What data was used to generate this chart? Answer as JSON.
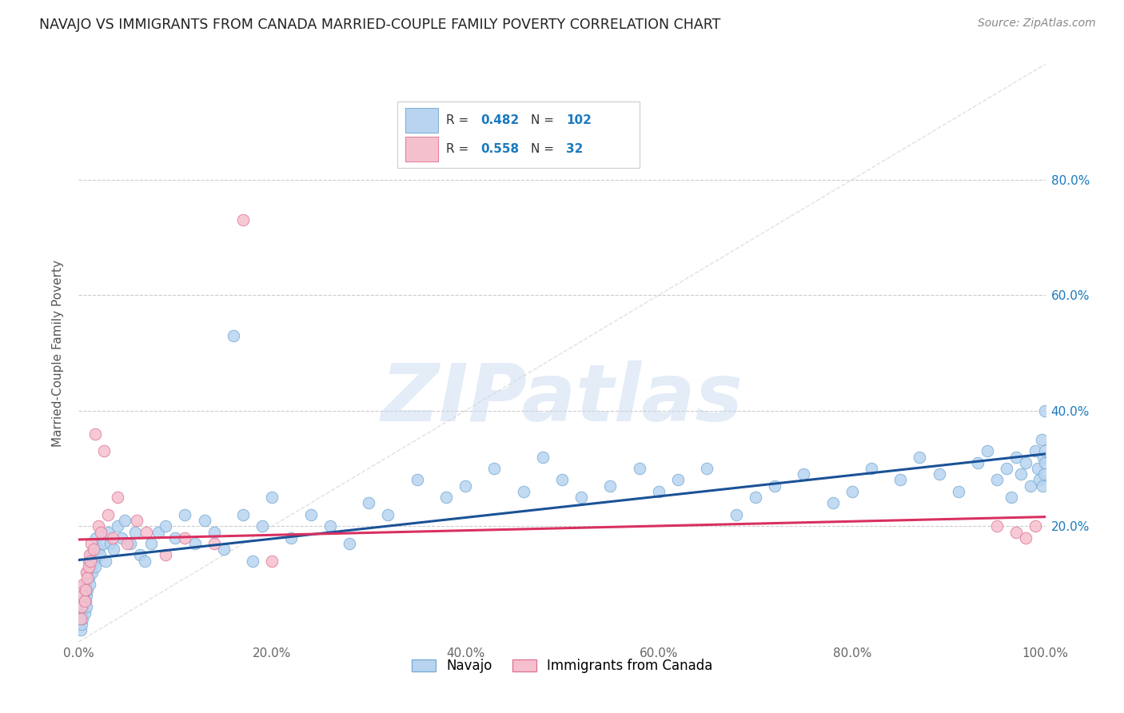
{
  "title": "NAVAJO VS IMMIGRANTS FROM CANADA MARRIED-COUPLE FAMILY POVERTY CORRELATION CHART",
  "source": "Source: ZipAtlas.com",
  "ylabel": "Married-Couple Family Poverty",
  "x_min": 0.0,
  "x_max": 1.0,
  "y_min": 0.0,
  "y_max": 1.0,
  "x_tick_vals": [
    0.0,
    0.2,
    0.4,
    0.6,
    0.8,
    1.0
  ],
  "x_tick_labels": [
    "0.0%",
    "20.0%",
    "40.0%",
    "60.0%",
    "80.0%",
    "100.0%"
  ],
  "y_tick_vals": [
    0.0,
    0.2,
    0.4,
    0.6,
    0.8
  ],
  "y_tick_labels_right": [
    "",
    "20.0%",
    "40.0%",
    "60.0%",
    "80.0%"
  ],
  "navajo_color": "#b8d4f0",
  "navajo_edge_color": "#7aadd4",
  "canada_color": "#f5c0ce",
  "canada_edge_color": "#e07898",
  "navajo_line_color": "#1a5296",
  "canada_line_color": "#d93060",
  "diagonal_color": "#dddddd",
  "navajo_R": 0.482,
  "navajo_N": 102,
  "canada_R": 0.558,
  "canada_N": 32,
  "watermark": "ZIPatlas",
  "legend_R_color": "#1a7abf",
  "navajo_x": [
    0.002,
    0.003,
    0.003,
    0.004,
    0.004,
    0.005,
    0.005,
    0.006,
    0.006,
    0.007,
    0.007,
    0.008,
    0.008,
    0.009,
    0.009,
    0.01,
    0.01,
    0.011,
    0.012,
    0.013,
    0.014,
    0.015,
    0.016,
    0.017,
    0.018,
    0.02,
    0.022,
    0.025,
    0.028,
    0.03,
    0.033,
    0.036,
    0.04,
    0.044,
    0.048,
    0.053,
    0.058,
    0.063,
    0.068,
    0.075,
    0.082,
    0.09,
    0.1,
    0.11,
    0.12,
    0.13,
    0.14,
    0.15,
    0.16,
    0.17,
    0.18,
    0.19,
    0.2,
    0.22,
    0.24,
    0.26,
    0.28,
    0.3,
    0.32,
    0.35,
    0.38,
    0.4,
    0.43,
    0.46,
    0.48,
    0.5,
    0.52,
    0.55,
    0.58,
    0.6,
    0.62,
    0.65,
    0.68,
    0.7,
    0.72,
    0.75,
    0.78,
    0.8,
    0.82,
    0.85,
    0.87,
    0.89,
    0.91,
    0.93,
    0.94,
    0.95,
    0.96,
    0.965,
    0.97,
    0.975,
    0.98,
    0.985,
    0.99,
    0.992,
    0.994,
    0.996,
    0.997,
    0.998,
    0.999,
    0.9995,
    0.9998,
    0.9999
  ],
  "navajo_y": [
    0.02,
    0.03,
    0.05,
    0.04,
    0.07,
    0.06,
    0.08,
    0.05,
    0.09,
    0.07,
    0.1,
    0.06,
    0.08,
    0.12,
    0.09,
    0.11,
    0.14,
    0.1,
    0.13,
    0.15,
    0.12,
    0.14,
    0.16,
    0.13,
    0.18,
    0.16,
    0.15,
    0.17,
    0.14,
    0.19,
    0.17,
    0.16,
    0.2,
    0.18,
    0.21,
    0.17,
    0.19,
    0.15,
    0.14,
    0.17,
    0.19,
    0.2,
    0.18,
    0.22,
    0.17,
    0.21,
    0.19,
    0.16,
    0.53,
    0.22,
    0.14,
    0.2,
    0.25,
    0.18,
    0.22,
    0.2,
    0.17,
    0.24,
    0.22,
    0.28,
    0.25,
    0.27,
    0.3,
    0.26,
    0.32,
    0.28,
    0.25,
    0.27,
    0.3,
    0.26,
    0.28,
    0.3,
    0.22,
    0.25,
    0.27,
    0.29,
    0.24,
    0.26,
    0.3,
    0.28,
    0.32,
    0.29,
    0.26,
    0.31,
    0.33,
    0.28,
    0.3,
    0.25,
    0.32,
    0.29,
    0.31,
    0.27,
    0.33,
    0.3,
    0.28,
    0.35,
    0.27,
    0.32,
    0.29,
    0.31,
    0.33,
    0.4
  ],
  "canada_x": [
    0.002,
    0.003,
    0.004,
    0.005,
    0.006,
    0.007,
    0.008,
    0.009,
    0.01,
    0.011,
    0.012,
    0.013,
    0.015,
    0.017,
    0.02,
    0.023,
    0.026,
    0.03,
    0.035,
    0.04,
    0.05,
    0.06,
    0.07,
    0.09,
    0.11,
    0.14,
    0.17,
    0.2,
    0.95,
    0.97,
    0.98,
    0.99
  ],
  "canada_y": [
    0.04,
    0.06,
    0.08,
    0.1,
    0.07,
    0.09,
    0.12,
    0.11,
    0.13,
    0.15,
    0.14,
    0.17,
    0.16,
    0.36,
    0.2,
    0.19,
    0.33,
    0.22,
    0.18,
    0.25,
    0.17,
    0.21,
    0.19,
    0.15,
    0.18,
    0.17,
    0.73,
    0.14,
    0.2,
    0.19,
    0.18,
    0.2
  ]
}
